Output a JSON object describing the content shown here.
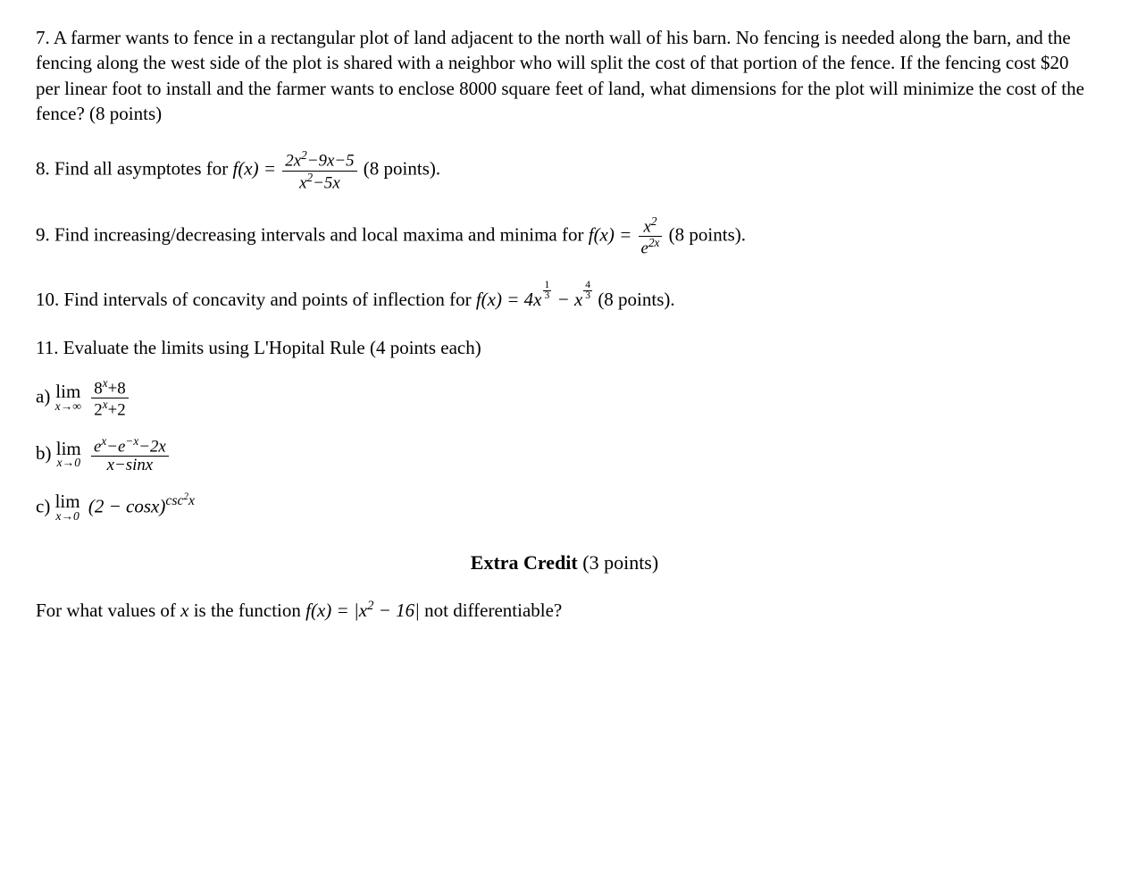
{
  "colors": {
    "text": "#000000",
    "background": "#ffffff"
  },
  "typography": {
    "font_family": "Georgia, Times New Roman, serif",
    "base_fontsize": 21,
    "line_height": 1.35
  },
  "problems": {
    "p7": {
      "text": "7. A farmer wants to fence in a rectangular plot of land adjacent to the north wall of his barn. No fencing is needed along the barn, and the fencing along the west side of the plot is shared with a neighbor who will split the cost of that portion of the fence. If the fencing cost $20 per linear foot to install and the farmer wants to enclose 8000 square feet of land, what dimensions for the plot will minimize the cost of the fence? (8 points)"
    },
    "p8": {
      "prefix": "8. Find all asymptotes for ",
      "func": "f(x) = ",
      "numerator": "2x² − 9x − 5",
      "denominator": "x² − 5x",
      "suffix": " (8 points)."
    },
    "p9": {
      "prefix": "9. Find increasing/decreasing intervals and local maxima and minima for ",
      "func": "f(x) = ",
      "numerator": "x²",
      "denominator": "e",
      "denom_sup": "2x",
      "suffix": " (8 points)."
    },
    "p10": {
      "prefix": "10. Find intervals of concavity and points of inflection for ",
      "func_start": "f(x) = 4x",
      "exp1_num": "1",
      "exp1_den": "3",
      "mid": " − x",
      "exp2_num": "4",
      "exp2_den": "3",
      "suffix": "  (8 points)."
    },
    "p11": {
      "header": "11. Evaluate the limits using L'Hopital Rule (4 points each)",
      "a": {
        "label": "a) ",
        "lim_top": "lim",
        "lim_bot": "x→∞",
        "numerator": "8ˣ + 8",
        "denominator": "2ˣ + 2"
      },
      "b": {
        "label": "b)  ",
        "lim_top": "lim",
        "lim_bot": "x→0",
        "numerator": "eˣ − e⁻ˣ − 2x",
        "denominator": "x − sinx"
      },
      "c": {
        "label": "c) ",
        "lim_top": "lim",
        "lim_bot": "x→0",
        "expr_base": "(2 − cosx)",
        "expr_exp": "csc²x"
      }
    },
    "extra_credit": {
      "title": "Extra Credit",
      "points": " (3 points)",
      "prefix": "For what values of ",
      "var": "x",
      "mid": " is the function ",
      "func": "f(x) = |x² − 16|",
      "suffix": " not differentiable?"
    }
  }
}
